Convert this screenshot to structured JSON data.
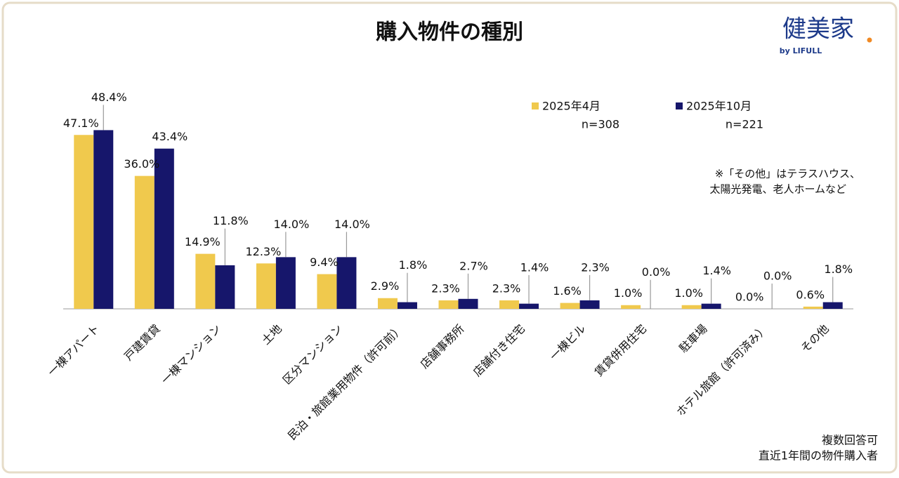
{
  "chart_data": {
    "type": "bar",
    "title": "購入物件の種別",
    "logo": "健美家",
    "logo_sub": "by LIFULL",
    "categories": [
      "一棟アパート",
      "戸建賃貸",
      "一棟マンション",
      "土地",
      "区分マンション",
      "民泊・旅館業用物件（許可前）",
      "店舗事務所",
      "店舗付き住宅",
      "一棟ビル",
      "賃貸併用住宅",
      "駐車場",
      "ホテル旅館（許可済み）",
      "その他"
    ],
    "series": [
      {
        "name": "2025年4月",
        "n": "n=308",
        "color": "#f0c94d",
        "values": [
          47.1,
          36.0,
          14.9,
          12.3,
          9.4,
          2.9,
          2.3,
          2.3,
          1.6,
          1.0,
          1.0,
          0.0,
          0.6
        ],
        "value_labels": [
          "47.1%",
          "36.0%",
          "14.9%",
          "12.3%",
          "9.4%",
          "2.9%",
          "2.3%",
          "2.3%",
          "1.6%",
          "1.0%",
          "1.0%",
          "0.0%",
          "0.6%"
        ]
      },
      {
        "name": "2025年10月",
        "n": "n=221",
        "color": "#16166b",
        "values": [
          48.4,
          43.4,
          11.8,
          14.0,
          14.0,
          1.8,
          2.7,
          1.4,
          2.3,
          0.0,
          1.4,
          0.0,
          1.8
        ],
        "value_labels": [
          "48.4%",
          "43.4%",
          "11.8%",
          "14.0%",
          "14.0%",
          "1.8%",
          "2.7%",
          "1.4%",
          "2.3%",
          "0.0%",
          "1.4%",
          "0.0%",
          "1.8%"
        ]
      }
    ],
    "ylim": [
      0,
      50
    ],
    "note": [
      "※「その他」はテラスハウス、",
      "太陽光発電、老人ホームなど"
    ],
    "footnote": [
      "複数回答可",
      "直近1年間の物件購入者"
    ]
  }
}
